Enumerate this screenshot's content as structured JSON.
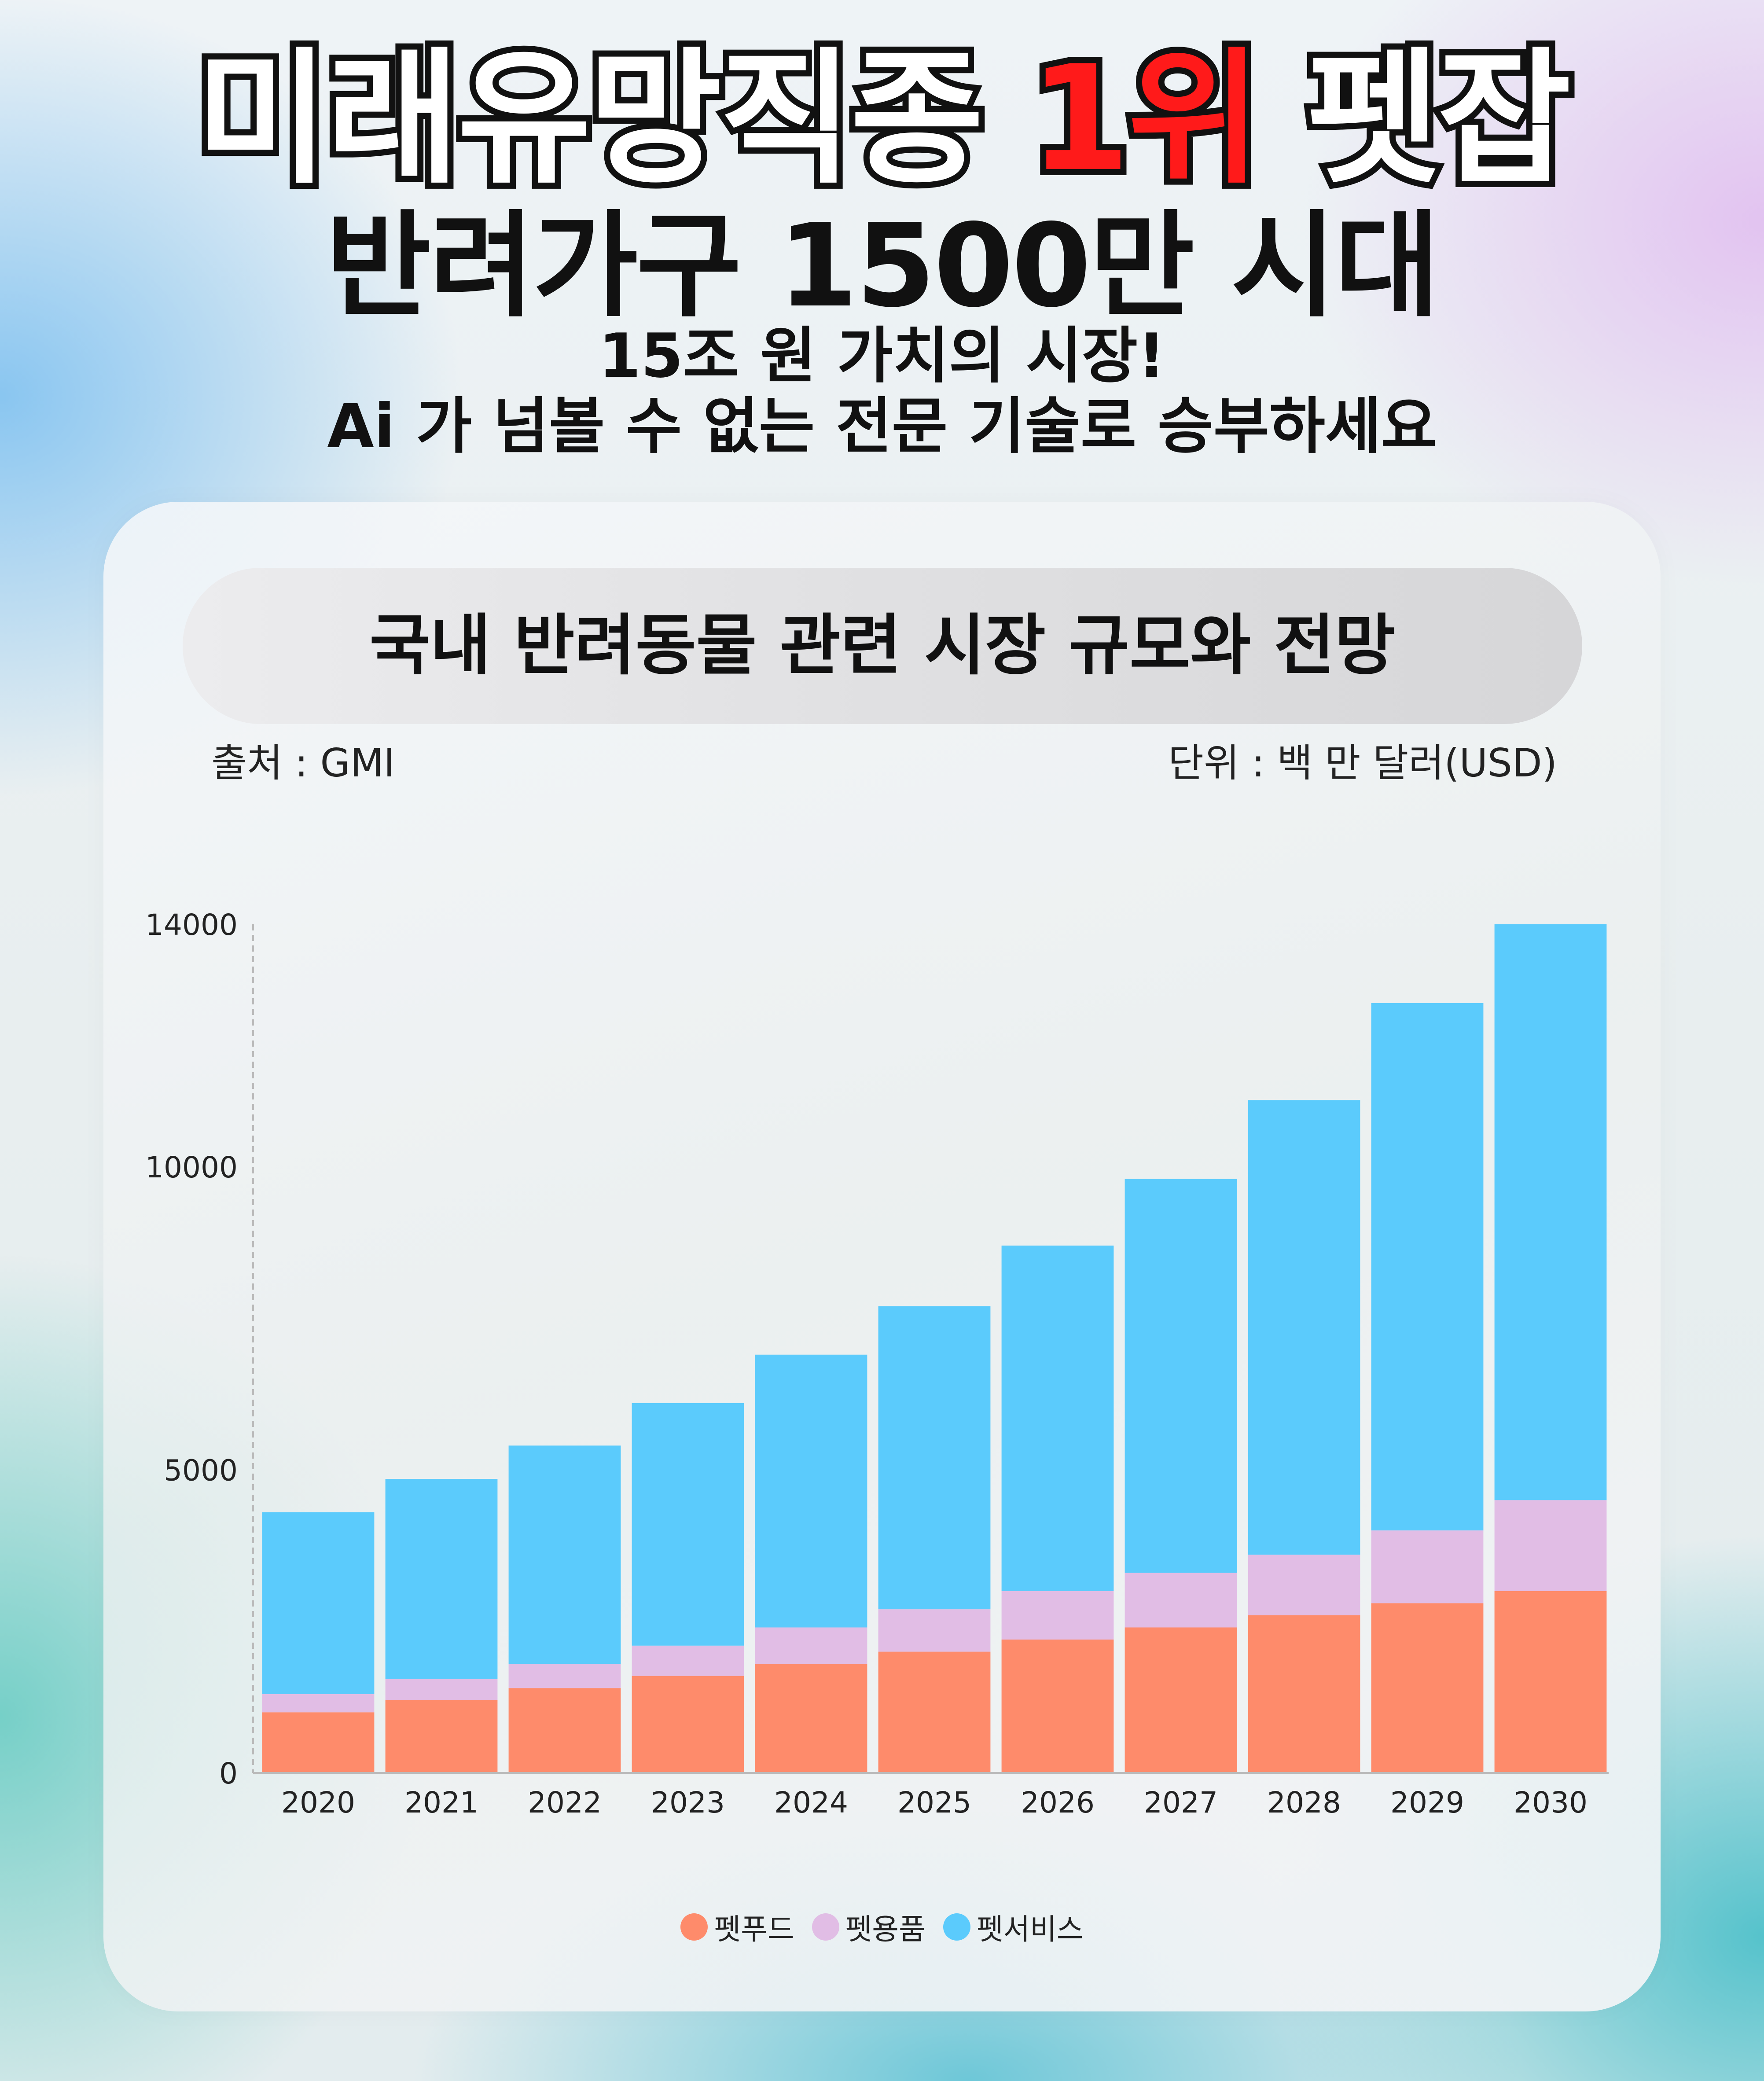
{
  "headline": {
    "line1_prefix": "미래유망직종 ",
    "line1_accent": "1위",
    "line1_suffix": " 펫잡",
    "line2": "반려가구 1500만 시대",
    "line3": "15조 원 가치의 시장!",
    "line4": "Ai 가 넘볼 수 없는 전문 기술로 승부하세요"
  },
  "colors": {
    "accent_red": "#ff1a1a",
    "petfood": "#fe8b6b",
    "petgoods": "#e1bde5",
    "petservice": "#5bcbfc"
  },
  "chart_data": {
    "type": "bar",
    "stacked": true,
    "title": "국내 반려동물 관련 시장 규모와 전망",
    "source": "출처 : GMI",
    "unit": "단위 : 백 만 달러(USD)",
    "categories": [
      "2020",
      "2021",
      "2022",
      "2023",
      "2024",
      "2025",
      "2026",
      "2027",
      "2028",
      "2029",
      "2030"
    ],
    "y_ticks": [
      0,
      5000,
      10000,
      14000
    ],
    "ylim": [
      0,
      14000
    ],
    "series": [
      {
        "name": "펫푸드",
        "color": "#fe8b6b",
        "values": [
          1000,
          1200,
          1400,
          1600,
          1800,
          2000,
          2200,
          2400,
          2600,
          2800,
          3000
        ]
      },
      {
        "name": "펫용품",
        "color": "#e1bde5",
        "values": [
          300,
          350,
          400,
          500,
          600,
          700,
          800,
          900,
          1000,
          1200,
          1500
        ]
      },
      {
        "name": "펫서비스",
        "color": "#5bcbfc",
        "values": [
          3000,
          3300,
          3600,
          4000,
          4500,
          5000,
          5700,
          6500,
          7500,
          8700,
          9500
        ]
      }
    ],
    "legend_position": "bottom",
    "grid": false
  }
}
